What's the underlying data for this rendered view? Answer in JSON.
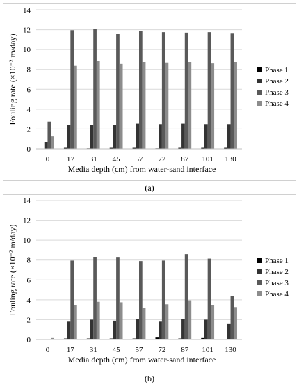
{
  "chart_data": [
    {
      "type": "bar",
      "panel_label": "(a)",
      "xlabel": "Media depth (cm) from water-sand interface",
      "ylabel": "Fouling rate (×10⁻² m/day)",
      "ylim": [
        0,
        14
      ],
      "yticks": [
        "0",
        "2",
        "4",
        "6",
        "8",
        "10",
        "12",
        "14"
      ],
      "grid": "horizontal",
      "legend_position": "right",
      "categories": [
        "0",
        "17",
        "31",
        "45",
        "57",
        "72",
        "87",
        "101",
        "130"
      ],
      "series": [
        {
          "name": "Phase 1",
          "color": "#000000",
          "values": [
            0.0,
            0.1,
            0.05,
            0.1,
            0.1,
            0.05,
            0.1,
            0.1,
            0.1
          ]
        },
        {
          "name": "Phase 2",
          "color": "#333333",
          "values": [
            0.7,
            2.4,
            2.4,
            2.4,
            2.55,
            2.5,
            2.55,
            2.5,
            2.5
          ]
        },
        {
          "name": "Phase 3",
          "color": "#595959",
          "values": [
            2.75,
            11.95,
            12.1,
            11.55,
            11.9,
            11.75,
            11.7,
            11.75,
            11.6
          ]
        },
        {
          "name": "Phase 4",
          "color": "#8c8c8c",
          "values": [
            1.25,
            8.35,
            8.85,
            8.55,
            8.75,
            8.7,
            8.75,
            8.6,
            8.75
          ]
        }
      ]
    },
    {
      "type": "bar",
      "panel_label": "(b)",
      "xlabel": "Media depth (cm) from water-sand interface",
      "ylabel": "Fouling rate (×10⁻² m/day)",
      "ylim": [
        0,
        14
      ],
      "yticks": [
        "0",
        "2",
        "4",
        "6",
        "8",
        "10",
        "12",
        "14"
      ],
      "grid": "horizontal",
      "legend_position": "right",
      "categories": [
        "0",
        "17",
        "31",
        "45",
        "57",
        "72",
        "87",
        "101",
        "130"
      ],
      "series": [
        {
          "name": "Phase 1",
          "color": "#000000",
          "values": [
            0.0,
            0.1,
            0.1,
            0.1,
            0.1,
            0.2,
            0.1,
            0.15,
            0.0
          ]
        },
        {
          "name": "Phase 2",
          "color": "#333333",
          "values": [
            0.05,
            1.8,
            2.0,
            1.9,
            2.1,
            1.8,
            2.05,
            2.0,
            1.55
          ]
        },
        {
          "name": "Phase 3",
          "color": "#595959",
          "values": [
            0.0,
            7.95,
            8.3,
            8.25,
            7.9,
            7.95,
            8.6,
            8.15,
            4.35
          ]
        },
        {
          "name": "Phase 4",
          "color": "#8c8c8c",
          "values": [
            0.15,
            3.5,
            3.8,
            3.75,
            3.15,
            3.55,
            3.95,
            3.5,
            3.2
          ]
        }
      ]
    }
  ]
}
